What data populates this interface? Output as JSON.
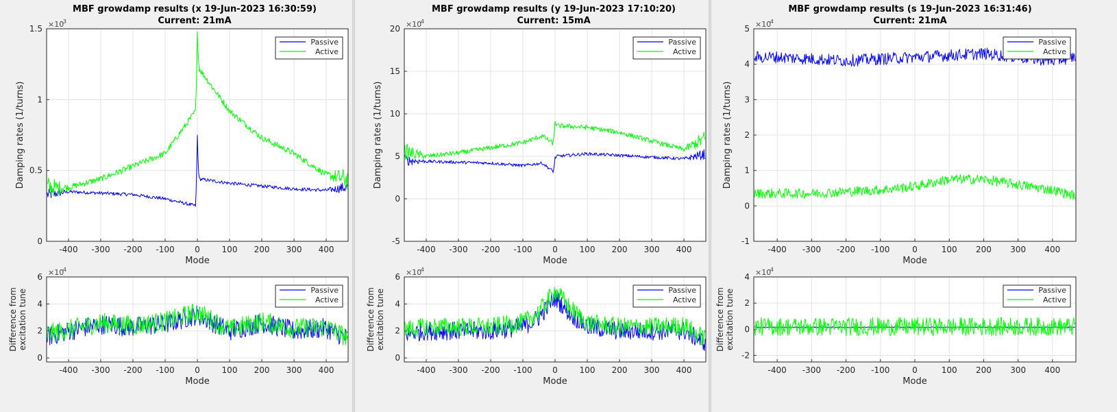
{
  "panels": [
    {
      "title_line1": "MBF growdamp results (x 19-Jun-2023 16:30:59)",
      "title_line2": "Current: 21mA",
      "top": {
        "exponent": "-3",
        "ylabel": "Damping rates (1/turns)",
        "xlabel": "Mode",
        "yticks": [
          "0",
          "0.5",
          "1",
          "1.5"
        ],
        "ylim": [
          0,
          1.5
        ],
        "legend": [
          "Passive",
          "Active"
        ]
      },
      "bottom": {
        "exponent": "-4",
        "ylabel_line1": "Difference from",
        "ylabel_line2": "excitation tune",
        "xlabel": "Mode",
        "yticks": [
          "0",
          "2",
          "4",
          "6"
        ],
        "ylim": [
          -0.3,
          6
        ],
        "legend": [
          "Passive",
          "Active"
        ]
      }
    },
    {
      "title_line1": "MBF growdamp results (y 19-Jun-2023 17:10:20)",
      "title_line2": "Current: 15mA",
      "top": {
        "exponent": "-4",
        "ylabel": "Damping rates (1/turns)",
        "xlabel": "Mode",
        "yticks": [
          "-5",
          "0",
          "5",
          "10",
          "15",
          "20"
        ],
        "ylim": [
          -5,
          20
        ],
        "legend": [
          "Passive",
          "Active"
        ]
      },
      "bottom": {
        "exponent": "-4",
        "ylabel_line1": "Difference from",
        "ylabel_line2": "excitation tune",
        "xlabel": "Mode",
        "yticks": [
          "0",
          "2",
          "4",
          "6"
        ],
        "ylim": [
          -0.3,
          6
        ],
        "legend": [
          "Passive",
          "Active"
        ]
      }
    },
    {
      "title_line1": "MBF growdamp results (s 19-Jun-2023 16:31:46)",
      "title_line2": "Current: 21mA",
      "top": {
        "exponent": "-4",
        "ylabel": "Damping rates (1/turns)",
        "xlabel": "Mode",
        "yticks": [
          "-1",
          "0",
          "1",
          "2",
          "3",
          "4",
          "5"
        ],
        "ylim": [
          -1,
          5
        ],
        "legend": [
          "Passive",
          "Active"
        ]
      },
      "bottom": {
        "exponent": "-4",
        "ylabel_line1": "Difference from",
        "ylabel_line2": "excitation tune",
        "xlabel": "Mode",
        "yticks": [
          "-2",
          "0",
          "2",
          "4"
        ],
        "ylim": [
          -2.5,
          4
        ],
        "legend": [
          "Passive",
          "Active"
        ]
      }
    }
  ],
  "xticks": [
    "-400",
    "-300",
    "-200",
    "-100",
    "0",
    "100",
    "200",
    "300",
    "400"
  ],
  "colors": {
    "passive": "#0000ff",
    "active": "#00ff00"
  },
  "chart_data": [
    {
      "type": "line",
      "title": "MBF growdamp results (x 19-Jun-2023 16:30:59)",
      "subtitle": "Current: 21mA",
      "xlabel": "Mode",
      "ylabel": "Damping rates (1/turns)",
      "y_scale_exponent": -3,
      "xlim": [
        -468,
        468
      ],
      "ylim": [
        0,
        1.5
      ],
      "grid": true,
      "legend_position": "top-right",
      "x": [
        -460,
        -400,
        -300,
        -200,
        -100,
        -5,
        0,
        5,
        100,
        200,
        300,
        400,
        460
      ],
      "series": [
        {
          "name": "Passive",
          "values": [
            0.33,
            0.35,
            0.34,
            0.33,
            0.3,
            0.25,
            0.7,
            0.44,
            0.41,
            0.39,
            0.37,
            0.36,
            0.38
          ]
        },
        {
          "name": "Active",
          "values": [
            0.38,
            0.38,
            0.44,
            0.53,
            0.62,
            0.92,
            1.45,
            1.22,
            0.92,
            0.73,
            0.62,
            0.47,
            0.44
          ]
        }
      ]
    },
    {
      "type": "line",
      "xlabel": "Mode",
      "ylabel": "Difference from excitation tune",
      "y_scale_exponent": -4,
      "xlim": [
        -468,
        468
      ],
      "ylim": [
        -0.3,
        6
      ],
      "grid": true,
      "legend_position": "top-right",
      "x": [
        -460,
        -400,
        -300,
        -200,
        -100,
        0,
        100,
        200,
        300,
        400,
        460
      ],
      "series": [
        {
          "name": "Passive",
          "values": [
            1.6,
            2.0,
            2.5,
            2.3,
            2.5,
            3.2,
            2.0,
            2.6,
            2.0,
            2.2,
            1.5
          ]
        },
        {
          "name": "Active",
          "values": [
            1.8,
            2.1,
            2.6,
            2.4,
            2.7,
            3.4,
            2.1,
            2.7,
            2.2,
            2.3,
            1.6
          ]
        }
      ]
    },
    {
      "type": "line",
      "title": "MBF growdamp results (y 19-Jun-2023 17:10:20)",
      "subtitle": "Current: 15mA",
      "xlabel": "Mode",
      "ylabel": "Damping rates (1/turns)",
      "y_scale_exponent": -4,
      "xlim": [
        -468,
        468
      ],
      "ylim": [
        -5,
        20
      ],
      "grid": true,
      "legend_position": "top-right",
      "x": [
        -460,
        -400,
        -300,
        -200,
        -100,
        -40,
        -5,
        0,
        5,
        100,
        200,
        300,
        400,
        460
      ],
      "series": [
        {
          "name": "Passive",
          "values": [
            4.5,
            4.4,
            4.3,
            4.2,
            3.9,
            4.2,
            3.2,
            4.8,
            5.0,
            5.3,
            5.1,
            4.9,
            4.7,
            5.2
          ]
        },
        {
          "name": "Active",
          "values": [
            5.5,
            5.0,
            5.4,
            6.0,
            6.6,
            7.4,
            6.5,
            9.2,
            8.6,
            8.4,
            7.8,
            6.8,
            5.8,
            7.0
          ]
        }
      ]
    },
    {
      "type": "line",
      "xlabel": "Mode",
      "ylabel": "Difference from excitation tune",
      "y_scale_exponent": -4,
      "xlim": [
        -468,
        468
      ],
      "ylim": [
        -0.3,
        6
      ],
      "grid": true,
      "legend_position": "top-right",
      "x": [
        -460,
        -400,
        -300,
        -200,
        -100,
        -50,
        0,
        50,
        100,
        200,
        300,
        400,
        460
      ],
      "series": [
        {
          "name": "Passive",
          "values": [
            1.8,
            2.0,
            2.0,
            2.0,
            2.3,
            3.0,
            4.5,
            3.2,
            2.3,
            2.0,
            2.0,
            2.0,
            1.2
          ]
        },
        {
          "name": "Active",
          "values": [
            2.1,
            2.3,
            2.3,
            2.3,
            2.6,
            3.4,
            5.0,
            3.6,
            2.6,
            2.3,
            2.3,
            2.4,
            1.5
          ]
        }
      ]
    },
    {
      "type": "line",
      "title": "MBF growdamp results (s 19-Jun-2023 16:31:46)",
      "subtitle": "Current: 21mA",
      "xlabel": "Mode",
      "ylabel": "Damping rates (1/turns)",
      "y_scale_exponent": -4,
      "xlim": [
        -468,
        468
      ],
      "ylim": [
        -1,
        5
      ],
      "grid": true,
      "legend_position": "top-right",
      "x": [
        -460,
        -400,
        -300,
        -200,
        -100,
        0,
        100,
        200,
        300,
        400,
        460
      ],
      "series": [
        {
          "name": "Passive",
          "values": [
            4.2,
            4.2,
            4.15,
            4.1,
            4.15,
            4.2,
            4.25,
            4.3,
            4.2,
            4.1,
            4.2
          ]
        },
        {
          "name": "Active",
          "values": [
            0.35,
            0.35,
            0.35,
            0.4,
            0.45,
            0.55,
            0.75,
            0.75,
            0.6,
            0.45,
            0.3
          ]
        }
      ]
    },
    {
      "type": "line",
      "xlabel": "Mode",
      "ylabel": "Difference from excitation tune",
      "y_scale_exponent": -4,
      "xlim": [
        -468,
        468
      ],
      "ylim": [
        -2.5,
        4
      ],
      "grid": true,
      "legend_position": "top-right",
      "x": [
        -460,
        -300,
        -100,
        0,
        100,
        300,
        460
      ],
      "series": [
        {
          "name": "Passive",
          "values": [
            0.15,
            0.15,
            0.15,
            0.15,
            0.15,
            0.15,
            0.15
          ]
        },
        {
          "name": "Active",
          "values": [
            0.2,
            0.2,
            0.2,
            0.2,
            0.2,
            0.2,
            0.2
          ]
        }
      ]
    }
  ]
}
